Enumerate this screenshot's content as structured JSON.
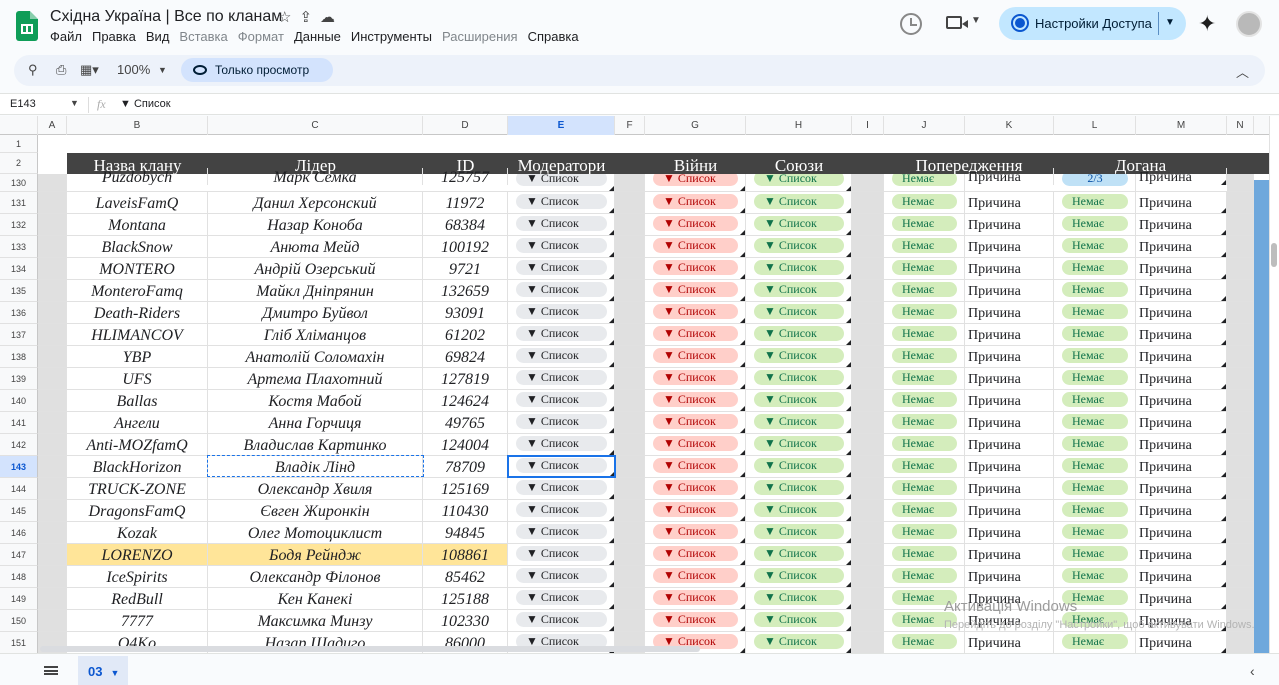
{
  "doc": {
    "title": "Східна Україна | Все по кланам"
  },
  "menu": [
    {
      "label": "Файл",
      "enabled": true
    },
    {
      "label": "Правка",
      "enabled": true
    },
    {
      "label": "Вид",
      "enabled": true
    },
    {
      "label": "Вставка",
      "enabled": false
    },
    {
      "label": "Формат",
      "enabled": false
    },
    {
      "label": "Данные",
      "enabled": true
    },
    {
      "label": "Инструменты",
      "enabled": true
    },
    {
      "label": "Расширения",
      "enabled": false
    },
    {
      "label": "Справка",
      "enabled": true
    }
  ],
  "share": {
    "label": "Настройки Доступа"
  },
  "toolbar": {
    "zoom": "100%",
    "view_only": "Только просмотр"
  },
  "formula": {
    "cell_ref": "E143",
    "fx": "fx",
    "value": "▼ Список"
  },
  "columns": [
    "A",
    "B",
    "C",
    "D",
    "E",
    "F",
    "G",
    "H",
    "I",
    "J",
    "K",
    "L",
    "M",
    "N"
  ],
  "headers": {
    "clan": "Назва клану",
    "leader": "Лідер",
    "id": "ID",
    "mods": "Модератори",
    "wars": "Війни",
    "allies": "Союзи",
    "warnings": "Попередження",
    "reprimand": "Догана"
  },
  "chips": {
    "list": "▼ Список",
    "none": "Немає",
    "reason": "Причина",
    "partial": "2/3"
  },
  "row_numbers": {
    "r1": "1",
    "r2": "2"
  },
  "rows": [
    {
      "n": "130",
      "clan": "Puzdobych",
      "leader": "Марк Семка",
      "id": "125757",
      "warn": "Немає",
      "rep": "2/3"
    },
    {
      "n": "131",
      "clan": "LaveisFamQ",
      "leader": "Данил Херсонский",
      "id": "11972",
      "warn": "Немає",
      "rep": "Немає"
    },
    {
      "n": "132",
      "clan": "Montana",
      "leader": "Назар Коноба",
      "id": "68384",
      "warn": "Немає",
      "rep": "Немає"
    },
    {
      "n": "133",
      "clan": "BlackSnow",
      "leader": "Анюта Мейд",
      "id": "100192",
      "warn": "Немає",
      "rep": "Немає"
    },
    {
      "n": "134",
      "clan": "MONTERO",
      "leader": "Андрій Озерський",
      "id": "9721",
      "warn": "Немає",
      "rep": "Немає"
    },
    {
      "n": "135",
      "clan": "MonteroFamq",
      "leader": "Майкл Дніпрянин",
      "id": "132659",
      "warn": "Немає",
      "rep": "Немає"
    },
    {
      "n": "136",
      "clan": "Death-Riders",
      "leader": "Дмитро Буйвол",
      "id": "93091",
      "warn": "Немає",
      "rep": "Немає"
    },
    {
      "n": "137",
      "clan": "HLIMANCOV",
      "leader": "Гліб Хліманцов",
      "id": "61202",
      "warn": "Немає",
      "rep": "Немає"
    },
    {
      "n": "138",
      "clan": "YBP",
      "leader": "Анатолій Соломахін",
      "id": "69824",
      "warn": "Немає",
      "rep": "Немає"
    },
    {
      "n": "139",
      "clan": "UFS",
      "leader": "Артема Плахотний",
      "id": "127819",
      "warn": "Немає",
      "rep": "Немає"
    },
    {
      "n": "140",
      "clan": "Ballas",
      "leader": "Костя Мабой",
      "id": "124624",
      "warn": "Немає",
      "rep": "Немає"
    },
    {
      "n": "141",
      "clan": "Ангели",
      "leader": "Анна Горчиця",
      "id": "49765",
      "warn": "Немає",
      "rep": "Немає"
    },
    {
      "n": "142",
      "clan": "Anti-MOZfamQ",
      "leader": "Владислав Картинко",
      "id": "124004",
      "warn": "Немає",
      "rep": "Немає"
    },
    {
      "n": "143",
      "clan": "BlackHorizon",
      "leader": "Владік Лінд",
      "id": "78709",
      "warn": "Немає",
      "rep": "Немає"
    },
    {
      "n": "144",
      "clan": "TRUCK-ZONE",
      "leader": "Олександр Хвиля",
      "id": "125169",
      "warn": "Немає",
      "rep": "Немає"
    },
    {
      "n": "145",
      "clan": "DragonsFamQ",
      "leader": "Євген Жиронкін",
      "id": "110430",
      "warn": "Немає",
      "rep": "Немає"
    },
    {
      "n": "146",
      "clan": "Kozak",
      "leader": "Олег Мотоциклист",
      "id": "94845",
      "warn": "Немає",
      "rep": "Немає"
    },
    {
      "n": "147",
      "clan": "LORENZO",
      "leader": "Бодя Рейндж",
      "id": "108861",
      "warn": "Немає",
      "rep": "Немає"
    },
    {
      "n": "148",
      "clan": "IceSpirits",
      "leader": "Олександр Філонов",
      "id": "85462",
      "warn": "Немає",
      "rep": "Немає"
    },
    {
      "n": "149",
      "clan": "RedBull",
      "leader": "Кен Канекі",
      "id": "125188",
      "warn": "Немає",
      "rep": "Немає"
    },
    {
      "n": "150",
      "clan": "7777",
      "leader": "Максимка Минзу",
      "id": "102330",
      "warn": "Немає",
      "rep": "Немає"
    },
    {
      "n": "151",
      "clan": "O4Ko",
      "leader": "Назар Шадиго",
      "id": "86000",
      "warn": "Немає",
      "rep": "Немає"
    }
  ],
  "sheet_tab": {
    "label": "03"
  },
  "watermark": {
    "line1": "Активація Windows",
    "line2": "Перейдіть до розділу \"Настройки\", щоб активувати Windows."
  },
  "colors": {
    "header_band": "#434343",
    "highlight_row": "#ffe599",
    "selection": "#1a73e8",
    "accent_col": "#6fa8dc"
  }
}
